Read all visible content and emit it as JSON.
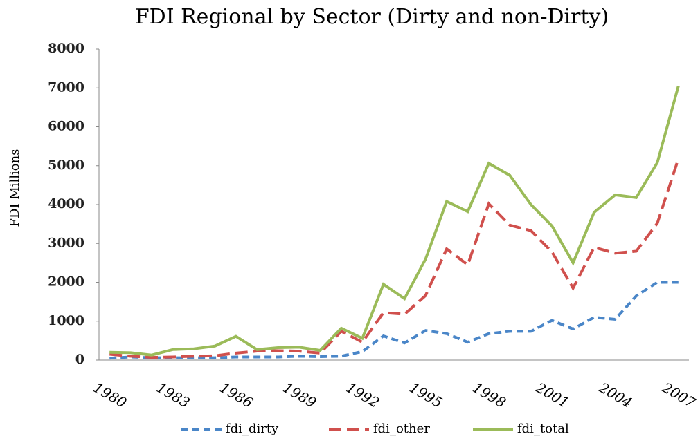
{
  "chart_data": {
    "type": "line",
    "title": "FDI Regional by Sector (Dirty and non-Dirty)",
    "y_label": "FDI Millions",
    "categories": [
      "1980",
      null,
      null,
      "1983",
      null,
      null,
      "1986",
      null,
      null,
      "1989",
      null,
      null,
      "1992",
      null,
      null,
      "1995",
      null,
      null,
      "1998",
      null,
      null,
      "2001",
      null,
      null,
      "2004",
      null,
      null,
      "2007"
    ],
    "series": [
      {
        "name": "fdi_dirty",
        "color": "#4a86c8",
        "dash": "dashed",
        "values": [
          50,
          80,
          60,
          60,
          60,
          60,
          80,
          80,
          80,
          100,
          90,
          100,
          220,
          620,
          440,
          760,
          680,
          460,
          680,
          740,
          740,
          1020,
          800,
          1100,
          1050,
          1650,
          2000,
          2000
        ]
      },
      {
        "name": "fdi_other",
        "color": "#d0504d",
        "dash": "longdash",
        "values": [
          150,
          100,
          70,
          80,
          100,
          110,
          180,
          230,
          240,
          230,
          180,
          740,
          460,
          1220,
          1180,
          1660,
          2860,
          2450,
          4020,
          3470,
          3330,
          2780,
          1850,
          2900,
          2750,
          2800,
          3520,
          5180
        ]
      },
      {
        "name": "fdi_total",
        "color": "#9bbb59",
        "dash": "solid",
        "values": [
          200,
          190,
          130,
          270,
          290,
          360,
          610,
          270,
          320,
          330,
          250,
          820,
          560,
          1950,
          1580,
          2600,
          4080,
          3820,
          5060,
          4750,
          4000,
          3450,
          2500,
          3800,
          4250,
          4180,
          5080,
          7050
        ]
      }
    ],
    "ylim": [
      0,
      8000
    ],
    "yticks": [
      0,
      1000,
      2000,
      3000,
      4000,
      5000,
      6000,
      7000,
      8000
    ],
    "grid": false,
    "legend": "bottom"
  }
}
